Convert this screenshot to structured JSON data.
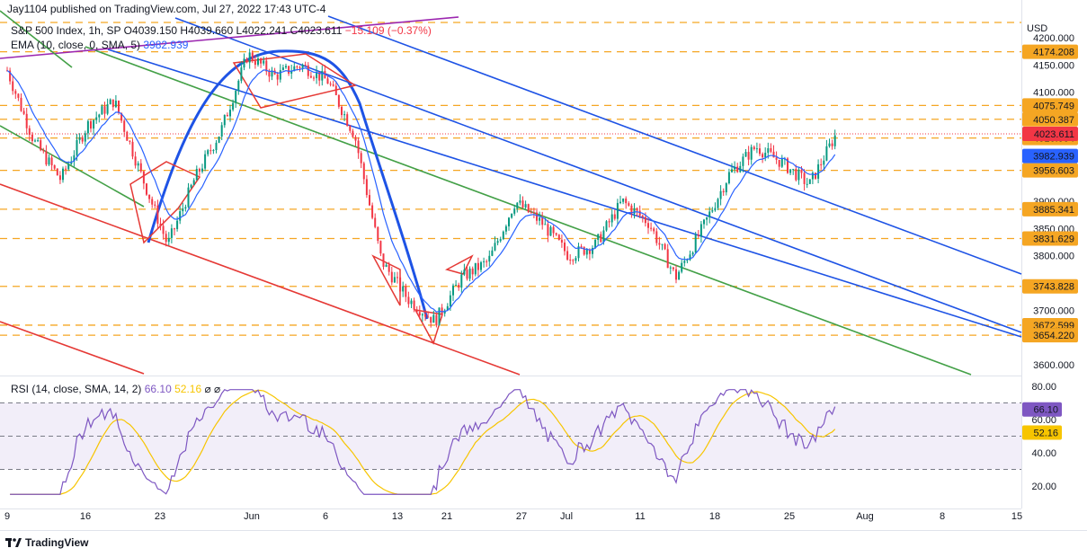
{
  "header": {
    "author_line": "Jay1104 published on TradingView.com, Jul 27, 2022 17:43 UTC-4",
    "symbol": "S&P 500 Index, 1h, SP",
    "open_label": "O",
    "open": "4039.150",
    "high_label": "H",
    "high": "4039.660",
    "low_label": "L",
    "low": "4022.241",
    "close_label": "C",
    "close": "4023.611",
    "change": "−15.109 (−0.37%)",
    "ema_label": "EMA (10, close, 0, SMA, 5)",
    "ema_value": "3982.939",
    "rsi_label": "RSI (14, close, SMA, 14, 2)",
    "rsi_value": "66.10",
    "rsi_ma_value": "52.16",
    "rsi_icons": "⌀ ⌀"
  },
  "footer": {
    "brand": "TradingView"
  },
  "colors": {
    "candle_up": "#089981",
    "candle_down": "#f23645",
    "ema": "#2962ff",
    "rsi": "#7e57c2",
    "rsi_ma": "#f7c500",
    "level": "#f5a623",
    "red_channel": "#e53935",
    "green_channel": "#43a047",
    "blue_channel": "#1e53e5",
    "purple_line": "#9c27b0",
    "price_tag": "#f23645",
    "ema_tag": "#2962ff"
  },
  "chart_data": [
    {
      "type": "candlestick",
      "title": "S&P 500 Index, 1h, SP",
      "currency": "USD",
      "y_ticks": [
        "4200.000",
        "4150.000",
        "4100.000",
        "3900.000",
        "3850.000",
        "3800.000",
        "3700.000",
        "3600.000"
      ],
      "ylim": [
        3575,
        4240
      ],
      "x_ticks": [
        "9",
        "16",
        "23",
        "Jun",
        "6",
        "13",
        "21",
        "27",
        "Jul",
        "11",
        "18",
        "25",
        "Aug",
        "8",
        "15"
      ],
      "horizontal_levels": [
        "4174.208",
        "4075.749",
        "4050.387",
        "4016.004",
        "3956.603",
        "3885.341",
        "3831.629",
        "3743.828",
        "3672.599",
        "3654.220"
      ],
      "last_price": "4023.611",
      "ema_last": "3982.939",
      "approx_path": [
        {
          "x": "9",
          "y": 4140
        },
        {
          "x": "12",
          "y": 4010
        },
        {
          "x": "13",
          "y": 3940
        },
        {
          "x": "16",
          "y": 4040
        },
        {
          "x": "18",
          "y": 4085
        },
        {
          "x": "20",
          "y": 3950
        },
        {
          "x": "23",
          "y": 3820
        },
        {
          "x": "25",
          "y": 3940
        },
        {
          "x": "27",
          "y": 4030
        },
        {
          "x": "Jun",
          "y": 4170
        },
        {
          "x": "3",
          "y": 4130
        },
        {
          "x": "6",
          "y": 4150
        },
        {
          "x": "8",
          "y": 4120
        },
        {
          "x": "10",
          "y": 4020
        },
        {
          "x": "13",
          "y": 3790
        },
        {
          "x": "15",
          "y": 3720
        },
        {
          "x": "17",
          "y": 3680
        },
        {
          "x": "21",
          "y": 3760
        },
        {
          "x": "23",
          "y": 3790
        },
        {
          "x": "24",
          "y": 3900
        },
        {
          "x": "27",
          "y": 3860
        },
        {
          "x": "30",
          "y": 3800
        },
        {
          "x": "Jul",
          "y": 3820
        },
        {
          "x": "8",
          "y": 3900
        },
        {
          "x": "11",
          "y": 3860
        },
        {
          "x": "14",
          "y": 3760
        },
        {
          "x": "18",
          "y": 3850
        },
        {
          "x": "20",
          "y": 3950
        },
        {
          "x": "22",
          "y": 4000
        },
        {
          "x": "25",
          "y": 3970
        },
        {
          "x": "26",
          "y": 3930
        },
        {
          "x": "27",
          "y": 4023.611
        }
      ]
    },
    {
      "type": "line",
      "title": "RSI (14, close, SMA, 14, 2)",
      "y_ticks": [
        "80.00",
        "60.00",
        "40.00",
        "20.00"
      ],
      "ylim": [
        10,
        82
      ],
      "bands": [
        70,
        50,
        30
      ],
      "series": [
        {
          "name": "RSI",
          "last": "66.10"
        },
        {
          "name": "RSI-based MA",
          "last": "52.16"
        }
      ]
    }
  ]
}
